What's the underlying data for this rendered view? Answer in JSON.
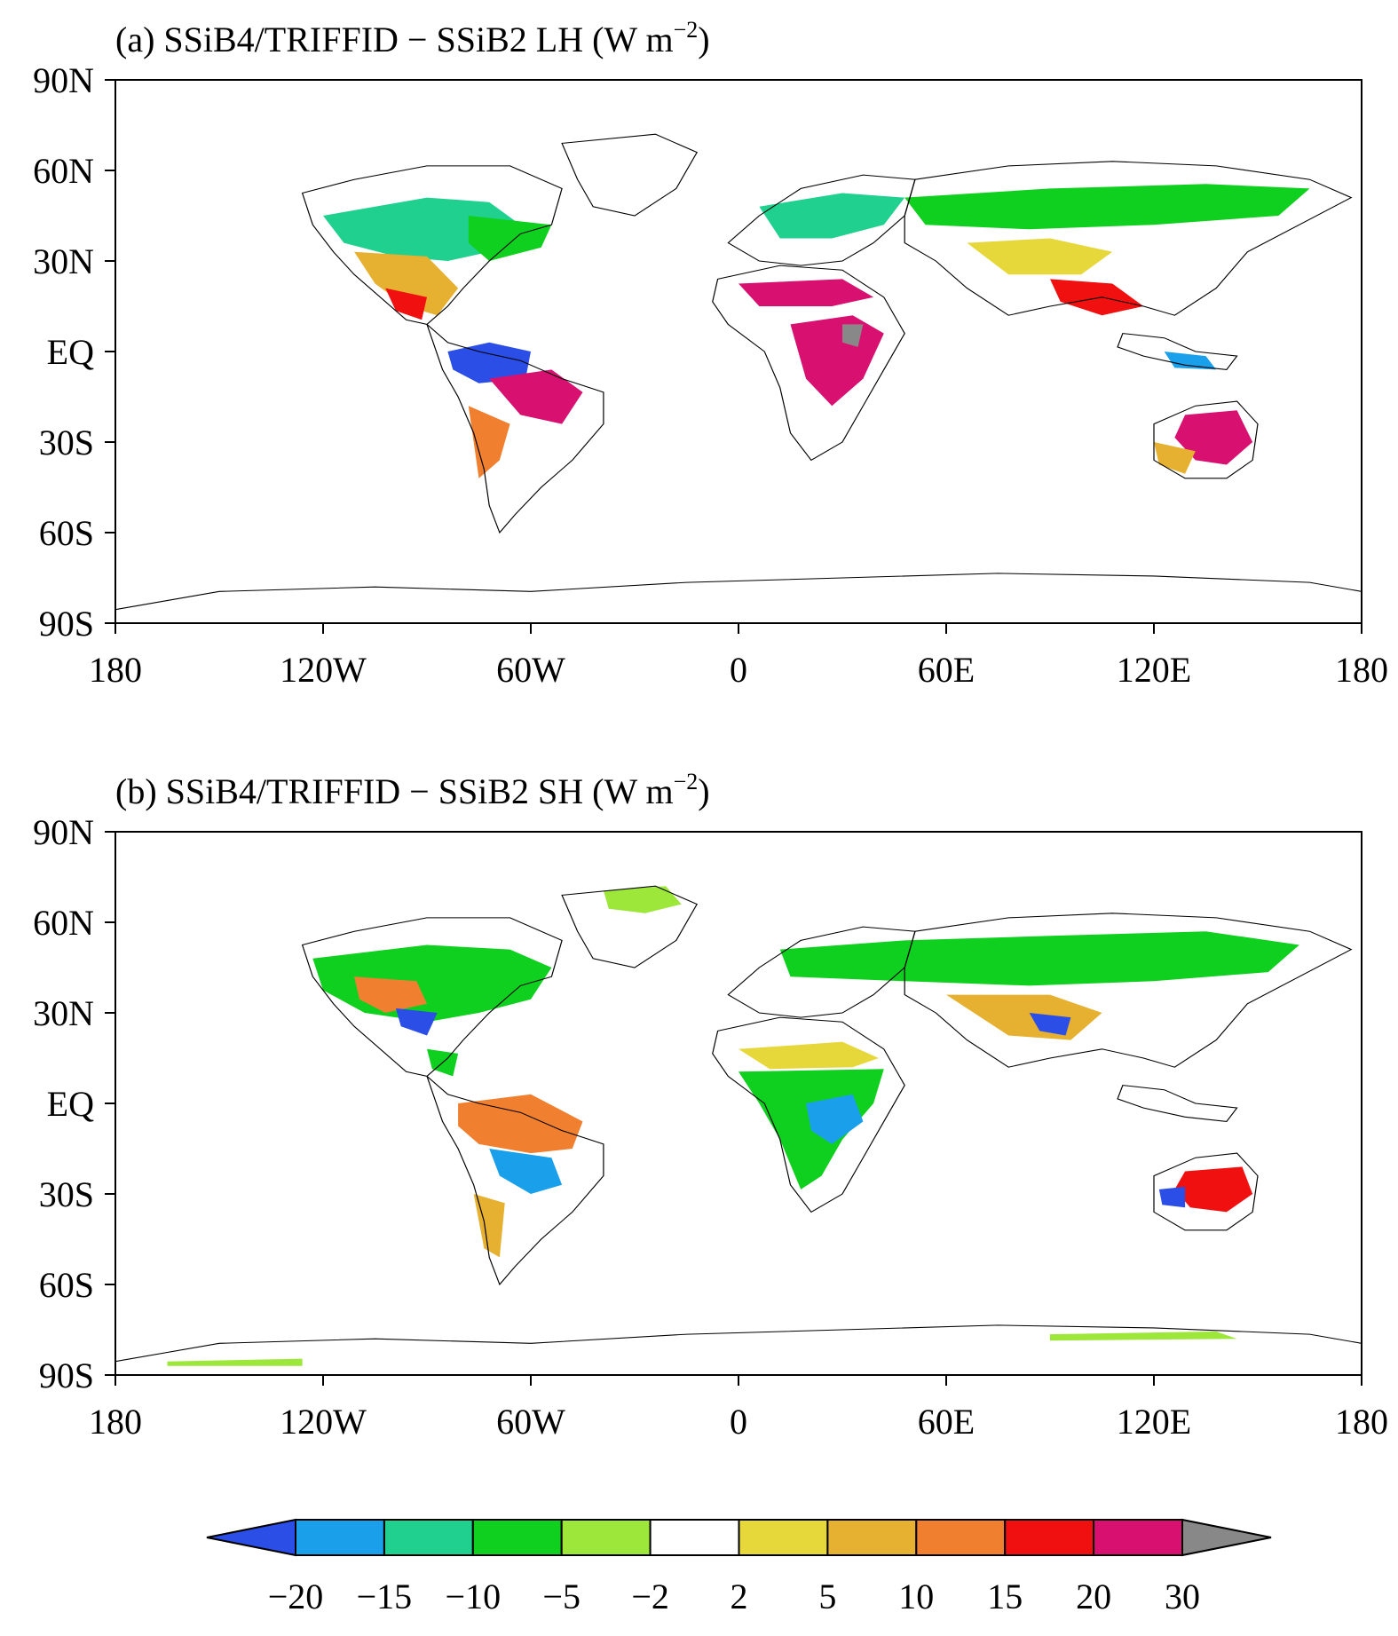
{
  "panels": [
    {
      "id": "a",
      "title_prefix": "(a) SSiB4/TRIFFID − SSiB2 LH (W m",
      "title_exp": "−2",
      "title_suffix": ")",
      "lat_ticks": [
        "90N",
        "60N",
        "30N",
        "EQ",
        "30S",
        "60S",
        "90S"
      ],
      "lon_ticks": [
        "180",
        "120W",
        "60W",
        "0",
        "60E",
        "120E",
        "180"
      ]
    },
    {
      "id": "b",
      "title_prefix": "(b) SSiB4/TRIFFID − SSiB2 SH (W m",
      "title_exp": "−2",
      "title_suffix": ")",
      "lat_ticks": [
        "90N",
        "60N",
        "30N",
        "EQ",
        "30S",
        "60S",
        "90S"
      ],
      "lon_ticks": [
        "180",
        "120W",
        "60W",
        "0",
        "60E",
        "120E",
        "180"
      ]
    }
  ],
  "colorbar": {
    "colors": [
      "#2b4ee6",
      "#1a9fea",
      "#1fd08f",
      "#0fd01e",
      "#9de63a",
      "#ffffff",
      "#e6d83a",
      "#e6b030",
      "#f08030",
      "#f01010",
      "#d81070",
      "#888888"
    ],
    "labels": [
      "−20",
      "−15",
      "−10",
      "−5",
      "−2",
      "2",
      "5",
      "10",
      "15",
      "20",
      "30"
    ]
  }
}
